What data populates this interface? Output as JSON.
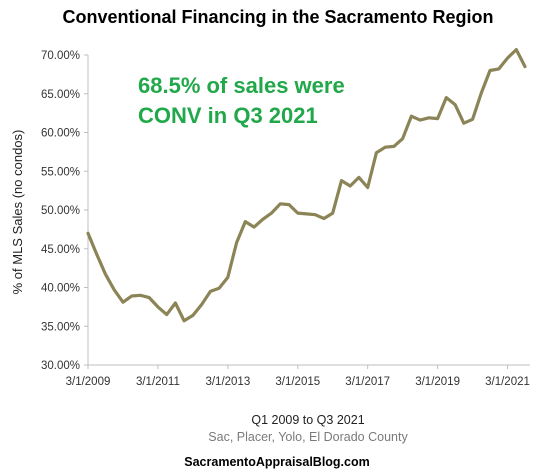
{
  "chart_data": {
    "type": "line",
    "title": "Conventional Financing in the Sacramento Region",
    "ylabel": "% of MLS Sales (no condos)",
    "xlabel": "Q1 2009  to Q3 2021",
    "subtitle": "Sac, Placer,  Yolo, El Dorado County",
    "footer": "SacramentoAppraisalBlog.com",
    "annotation_lines": [
      "68.5% of sales were",
      "CONV in Q3 2021"
    ],
    "annotation_color": "#21a84a",
    "line_color": "#8b8456",
    "ylim": [
      30,
      70
    ],
    "y_ticks": [
      "30.00%",
      "35.00%",
      "40.00%",
      "45.00%",
      "50.00%",
      "55.00%",
      "60.00%",
      "65.00%",
      "70.00%"
    ],
    "x_ticks": [
      "3/1/2009",
      "3/1/2011",
      "3/1/2013",
      "3/1/2015",
      "3/1/2017",
      "3/1/2019",
      "3/1/2021"
    ],
    "grid": false,
    "x": [
      "Q1 2009",
      "Q2 2009",
      "Q3 2009",
      "Q4 2009",
      "Q1 2010",
      "Q2 2010",
      "Q3 2010",
      "Q4 2010",
      "Q1 2011",
      "Q2 2011",
      "Q3 2011",
      "Q4 2011",
      "Q1 2012",
      "Q2 2012",
      "Q3 2012",
      "Q4 2012",
      "Q1 2013",
      "Q2 2013",
      "Q3 2013",
      "Q4 2013",
      "Q1 2014",
      "Q2 2014",
      "Q3 2014",
      "Q4 2014",
      "Q1 2015",
      "Q2 2015",
      "Q3 2015",
      "Q4 2015",
      "Q1 2016",
      "Q2 2016",
      "Q3 2016",
      "Q4 2016",
      "Q1 2017",
      "Q2 2017",
      "Q3 2017",
      "Q4 2017",
      "Q1 2018",
      "Q2 2018",
      "Q3 2018",
      "Q4 2018",
      "Q1 2019",
      "Q2 2019",
      "Q3 2019",
      "Q4 2019",
      "Q1 2020",
      "Q2 2020",
      "Q3 2020",
      "Q4 2020",
      "Q1 2021",
      "Q2 2021",
      "Q3 2021"
    ],
    "series": [
      {
        "values": [
          47.0,
          44.3,
          41.7,
          39.7,
          38.1,
          38.9,
          39.0,
          38.7,
          37.5,
          36.5,
          38.0,
          35.7,
          36.4,
          37.8,
          39.5,
          39.9,
          41.3,
          45.8,
          48.5,
          47.8,
          48.8,
          49.6,
          50.8,
          50.7,
          49.6,
          49.5,
          49.4,
          48.9,
          49.6,
          53.8,
          53.1,
          54.2,
          52.9,
          57.4,
          58.1,
          58.2,
          59.2,
          62.1,
          61.6,
          61.9,
          61.8,
          64.5,
          63.6,
          61.2,
          61.7,
          65.1,
          68.0,
          68.2,
          69.6,
          70.7,
          68.5
        ]
      }
    ]
  }
}
